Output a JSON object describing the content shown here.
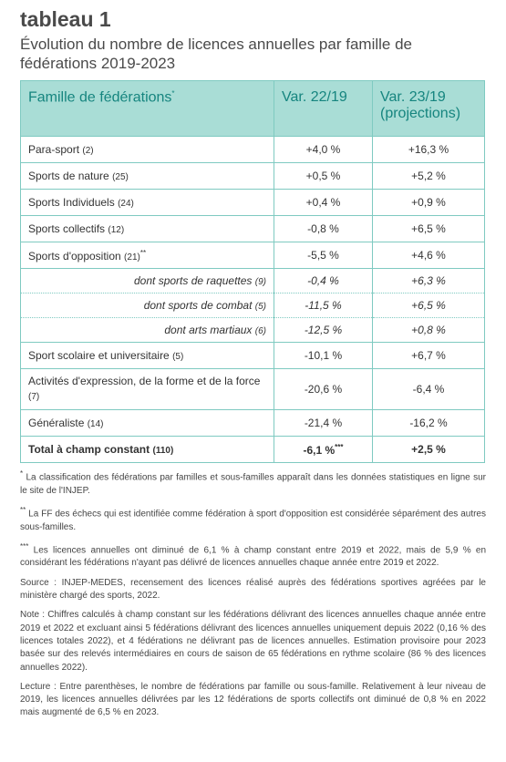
{
  "header": {
    "title": "tableau 1",
    "subtitle": "Évolution du nombre de licences annuelles par famille de fédérations 2019-2023"
  },
  "table": {
    "columns": [
      "Famille de fédérations",
      "Var. 22/19",
      "Var. 23/19 (projections)"
    ],
    "columns_marker": "*",
    "rows": [
      {
        "name": "Para-sport",
        "count": "(2)",
        "v1": "+4,0 %",
        "v2": "+16,3 %"
      },
      {
        "name": "Sports de nature",
        "count": "(25)",
        "v1": "+0,5 %",
        "v2": "+5,2 %"
      },
      {
        "name": "Sports Individuels",
        "count": "(24)",
        "v1": "+0,4 %",
        "v2": "+0,9 %"
      },
      {
        "name": "Sports collectifs",
        "count": "(12)",
        "v1": "-0,8 %",
        "v2": "+6,5 %"
      },
      {
        "name": "Sports d'opposition",
        "count": "(21)",
        "marker": "**",
        "v1": "-5,5 %",
        "v2": "+4,6 %"
      },
      {
        "name": "dont sports de raquettes",
        "count": "(9)",
        "v1": "-0,4 %",
        "v2": "+6,3 %",
        "sub": true
      },
      {
        "name": "dont sports de combat",
        "count": "(5)",
        "v1": "-11,5 %",
        "v2": "+6,5 %",
        "sub": true
      },
      {
        "name": "dont arts martiaux",
        "count": "(6)",
        "v1": "-12,5 %",
        "v2": "+0,8 %",
        "sub": true
      },
      {
        "name": "Sport scolaire et universitaire",
        "count": "(5)",
        "v1": "-10,1 %",
        "v2": "+6,7 %"
      },
      {
        "name": "Activités d'expression, de la forme et de la force",
        "count": "(7)",
        "v1": "-20,6 %",
        "v2": "-6,4 %"
      },
      {
        "name": "Généraliste",
        "count": "(14)",
        "v1": "-21,4 %",
        "v2": "-16,2 %"
      },
      {
        "name": "Total à champ constant",
        "count": "(110)",
        "v1": "-6,1 %",
        "v1_marker": "***",
        "v2": "+2,5 %",
        "total": true
      }
    ]
  },
  "notes": [
    {
      "marker": "*",
      "text": "La classification des fédérations par familles et sous-familles apparaît dans les données statistiques en ligne sur le site de l'INJEP."
    },
    {
      "marker": "**",
      "text": "La FF des échecs qui est identifiée comme fédération à sport d'opposition est considérée séparément des autres sous-familles."
    },
    {
      "marker": "***",
      "text": "Les licences annuelles ont diminué de 6,1 % à champ constant entre 2019 et 2022, mais de 5,9 % en considérant les fédérations n'ayant pas délivré de licences annuelles chaque année entre 2019 et 2022."
    },
    {
      "text": "Source : INJEP-MEDES, recensement des licences réalisé auprès des fédérations sportives agréées par le ministère chargé des sports, 2022."
    },
    {
      "text": "Note : Chiffres calculés à champ constant sur les fédérations délivrant des licences annuelles chaque année entre 2019 et 2022 et excluant ainsi 5 fédérations délivrant des licences annuelles uniquement depuis 2022 (0,16 % des licences totales 2022), et 4 fédérations ne délivrant pas de licences annuelles. Estimation provisoire pour 2023 basée sur des relevés intermédiaires en cours de saison de 65 fédérations en rythme scolaire (86 % des licences annuelles 2022)."
    },
    {
      "text": "Lecture : Entre parenthèses, le nombre de fédérations par famille ou sous-famille. Relativement à leur niveau de 2019, les licences annuelles délivrées par les 12 fédérations de sports collectifs ont diminué de 0,8 % en 2022 mais augmenté de 6,5 % en 2023."
    }
  ]
}
